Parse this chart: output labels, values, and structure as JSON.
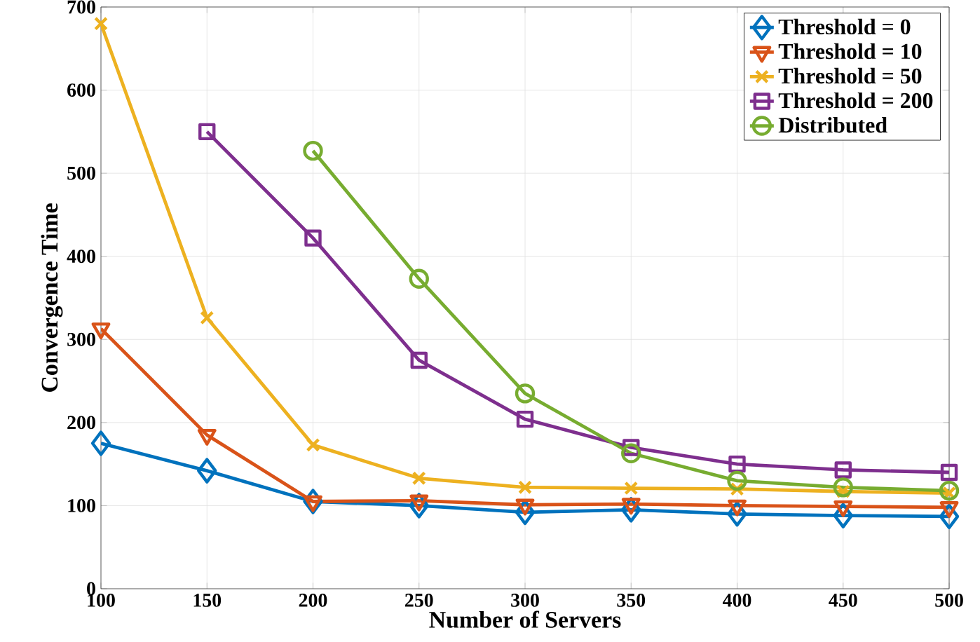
{
  "chart_data": {
    "type": "line",
    "xlabel": "Number of Servers",
    "ylabel": "Convergence Time",
    "x": [
      100,
      150,
      200,
      250,
      300,
      350,
      400,
      450,
      500
    ],
    "series": [
      {
        "name": "Threshold = 0",
        "color": "#0072bd",
        "marker": "diamond",
        "values": [
          175,
          142,
          105,
          100,
          92,
          95,
          90,
          88,
          87
        ]
      },
      {
        "name": "Threshold = 10",
        "color": "#d95319",
        "marker": "triangle",
        "values": [
          313,
          185,
          105,
          106,
          101,
          102,
          100,
          99,
          98
        ]
      },
      {
        "name": "Threshold = 50",
        "color": "#edb120",
        "marker": "cross",
        "values": [
          680,
          326,
          173,
          133,
          122,
          121,
          120,
          117,
          115
        ]
      },
      {
        "name": "Threshold = 200",
        "color": "#7e2f8e",
        "marker": "square",
        "values": [
          null,
          550,
          422,
          275,
          204,
          170,
          150,
          143,
          140
        ]
      },
      {
        "name": "Distributed",
        "color": "#77ac30",
        "marker": "circle",
        "values": [
          null,
          null,
          527,
          373,
          235,
          163,
          130,
          122,
          118
        ]
      }
    ],
    "xlim": [
      100,
      500
    ],
    "ylim": [
      0,
      700
    ],
    "xticks": [
      100,
      150,
      200,
      250,
      300,
      350,
      400,
      450,
      500
    ],
    "yticks": [
      0,
      100,
      200,
      300,
      400,
      500,
      600,
      700
    ],
    "grid": true,
    "legend": "top right",
    "line_style": "solid"
  }
}
